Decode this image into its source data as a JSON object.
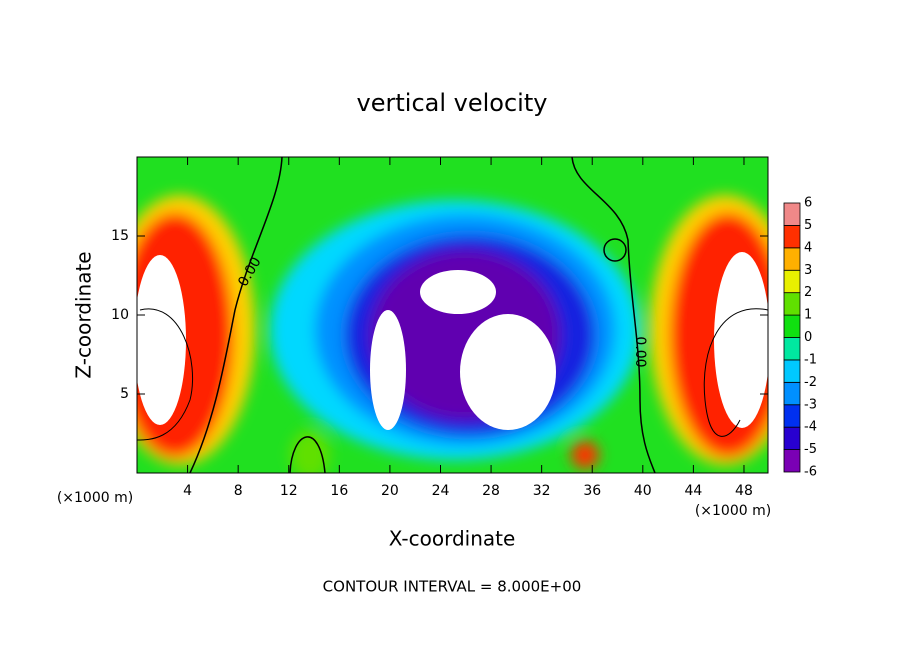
{
  "chart_data": {
    "type": "contour",
    "title": "vertical velocity",
    "x_label": "X-coordinate",
    "y_label": "Z-coordinate",
    "x_unit_left": "(×1000 m)",
    "x_unit_right": "(×1000 m)",
    "footnote": "CONTOUR INTERVAL = 8.000E+00",
    "contour_labels": [
      "0.00",
      "0.00"
    ],
    "xlim": [
      0,
      49.9
    ],
    "xticks": [
      4,
      8,
      12,
      16,
      20,
      24,
      28,
      32,
      36,
      40,
      44,
      48
    ],
    "ylim": [
      0,
      20
    ],
    "yticks": [
      5,
      10,
      15
    ],
    "colorbar": {
      "levels": [
        -6,
        -5,
        -4,
        -3,
        -2,
        -1,
        0,
        1,
        2,
        3,
        4,
        5,
        6
      ],
      "colors": [
        "#7a00b4",
        "#2800d0",
        "#0030f0",
        "#0090ff",
        "#00c8ff",
        "#00e8a0",
        "#10e010",
        "#60e000",
        "#e8f000",
        "#ffb000",
        "#ff3000",
        "#f08888"
      ]
    }
  }
}
